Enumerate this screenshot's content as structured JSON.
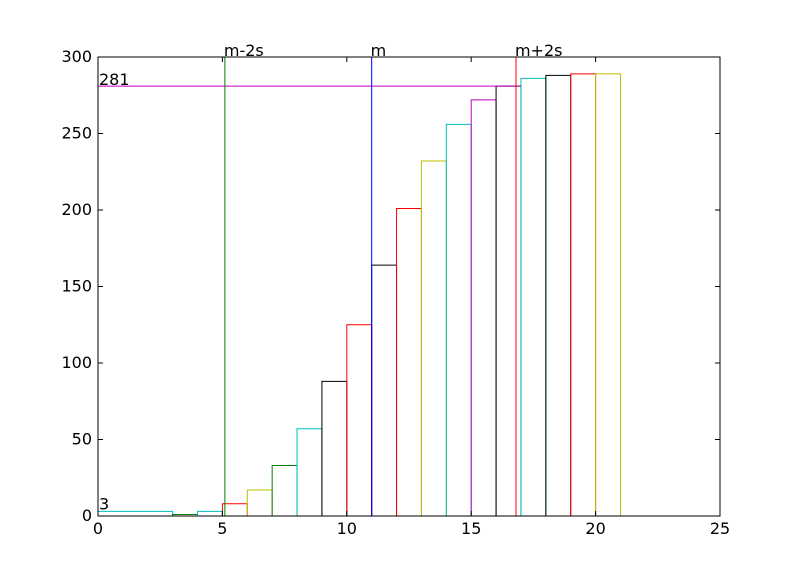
{
  "chart_data": {
    "type": "bar",
    "style": "cumulative-step-outlines",
    "xlim": [
      0,
      25
    ],
    "ylim": [
      0,
      300
    ],
    "x_ticks": [
      0,
      5,
      10,
      15,
      20,
      25
    ],
    "y_ticks": [
      0,
      50,
      100,
      150,
      200,
      250,
      300
    ],
    "grid": false,
    "bars": [
      {
        "x0": 0,
        "x1": 3,
        "value": 3,
        "color": "#00bfbf"
      },
      {
        "x0": 3,
        "x1": 4,
        "value": 1,
        "color": "#008000"
      },
      {
        "x0": 4,
        "x1": 5,
        "value": 3,
        "color": "#00bfbf"
      },
      {
        "x0": 5,
        "x1": 6,
        "value": 8,
        "color": "#ff0000"
      },
      {
        "x0": 6,
        "x1": 7,
        "value": 17,
        "color": "#bfbf00"
      },
      {
        "x0": 7,
        "x1": 8,
        "value": 33,
        "color": "#008000"
      },
      {
        "x0": 8,
        "x1": 9,
        "value": 57,
        "color": "#00bfbf"
      },
      {
        "x0": 9,
        "x1": 10,
        "value": 88,
        "color": "#000000"
      },
      {
        "x0": 10,
        "x1": 11,
        "value": 125,
        "color": "#ff0000"
      },
      {
        "x0": 11,
        "x1": 12,
        "value": 164,
        "color": "#000000"
      },
      {
        "x0": 12,
        "x1": 13,
        "value": 201,
        "color": "#ff0000"
      },
      {
        "x0": 13,
        "x1": 14,
        "value": 232,
        "color": "#bfbf00"
      },
      {
        "x0": 14,
        "x1": 15,
        "value": 256,
        "color": "#00bfbf"
      },
      {
        "x0": 15,
        "x1": 16,
        "value": 272,
        "color": "#bf00bf"
      },
      {
        "x0": 16,
        "x1": 17,
        "value": 281,
        "color": "#000000"
      },
      {
        "x0": 17,
        "x1": 18,
        "value": 286,
        "color": "#00bfbf"
      },
      {
        "x0": 18,
        "x1": 19,
        "value": 288,
        "color": "#000000"
      },
      {
        "x0": 19,
        "x1": 20,
        "value": 289,
        "color": "#ff0000"
      },
      {
        "x0": 20,
        "x1": 21,
        "value": 289,
        "color": "#bfbf00"
      }
    ],
    "vlines": [
      {
        "x": 5.1,
        "label": "m-2s",
        "color": "#008000"
      },
      {
        "x": 11.0,
        "label": "m",
        "color": "#0000ff"
      },
      {
        "x": 16.8,
        "label": "m+2s",
        "color": "#ff0000"
      }
    ],
    "hline": {
      "y": 281,
      "x_end": 17,
      "label": "281",
      "color": "#bf00bf"
    },
    "annotations": [
      {
        "x": 0,
        "y": 3,
        "text": "3"
      }
    ]
  }
}
